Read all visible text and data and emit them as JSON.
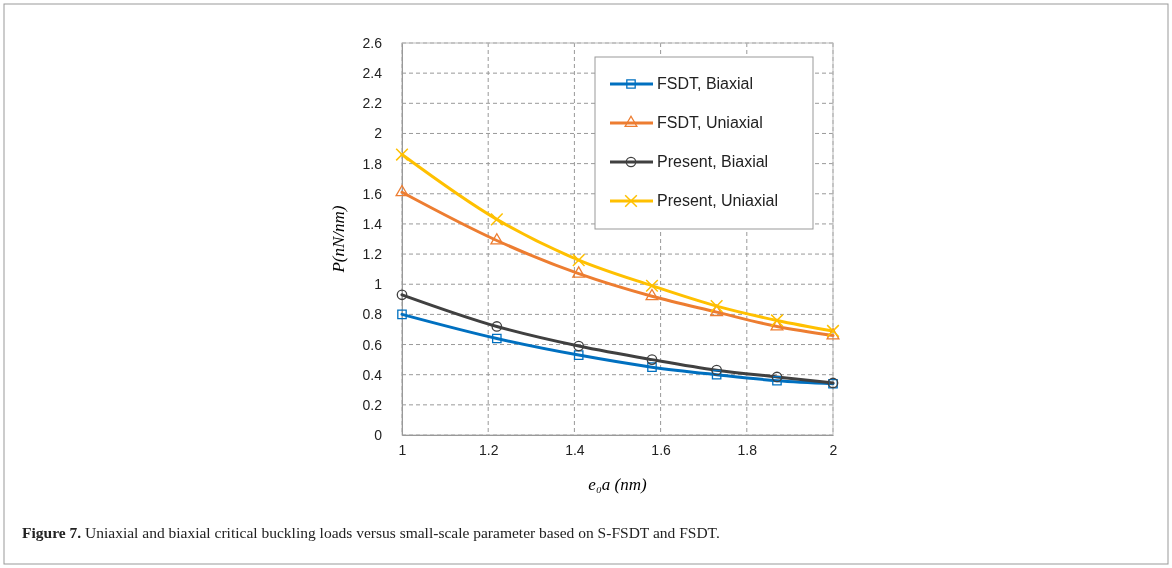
{
  "chart_data": {
    "type": "line",
    "xlabel": "e₀a (nm)",
    "ylabel": "P(nN/nm)",
    "x": [
      1,
      1.22,
      1.41,
      1.58,
      1.73,
      1.87,
      2
    ],
    "xlim": [
      1,
      2
    ],
    "xticks": [
      1,
      1.2,
      1.4,
      1.6,
      1.8,
      2
    ],
    "ylim": [
      0,
      2.6
    ],
    "yticks": [
      0,
      0.2,
      0.4,
      0.6,
      0.8,
      1,
      1.2,
      1.4,
      1.6,
      1.8,
      2,
      2.2,
      2.4,
      2.6
    ],
    "grid": true,
    "legend": "top right",
    "series": [
      {
        "name": "FSDT, Biaxial",
        "color": "#0070c0",
        "marker": "square",
        "values": [
          0.8,
          0.64,
          0.53,
          0.45,
          0.4,
          0.36,
          0.34
        ]
      },
      {
        "name": "FSDT, Uniaxial",
        "color": "#ed7d31",
        "marker": "triangle",
        "values": [
          1.61,
          1.29,
          1.07,
          0.92,
          0.815,
          0.72,
          0.66
        ]
      },
      {
        "name": "Present, Biaxial",
        "color": "#404040",
        "marker": "circle",
        "values": [
          0.93,
          0.72,
          0.59,
          0.5,
          0.43,
          0.385,
          0.345
        ]
      },
      {
        "name": "Present, Uniaxial",
        "color": "#ffc000",
        "marker": "cross",
        "values": [
          1.86,
          1.43,
          1.16,
          0.99,
          0.855,
          0.76,
          0.69
        ]
      }
    ],
    "annotations": [
      "Figure 7. Uniaxial and biaxial critical buckling loads versus small-scale parameter based on S-FSDT and FSDT."
    ]
  }
}
